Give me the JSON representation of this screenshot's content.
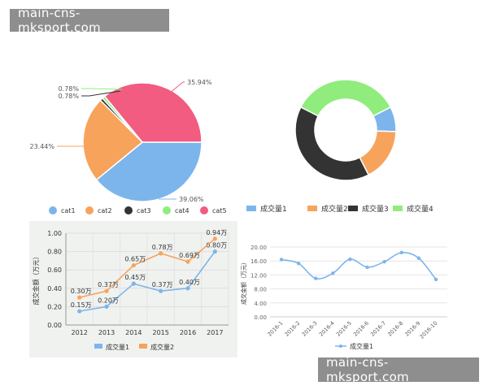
{
  "watermark": {
    "top": "main-cns-mksport.com",
    "bottom": "main-cns-mksport.com"
  },
  "chart_data": [
    {
      "type": "pie",
      "categories": [
        "cat1",
        "cat2",
        "cat3",
        "cat4",
        "cat5"
      ],
      "values": [
        39.06,
        23.44,
        0.78,
        0.78,
        35.94
      ],
      "labels": [
        "39.06%",
        "23.44%",
        "0.78%",
        "0.78%",
        "35.94%"
      ],
      "colors": [
        "#7cb5ec",
        "#f7a35c",
        "#333333",
        "#90ed7d",
        "#f15c80"
      ],
      "legend_position": "bottom"
    },
    {
      "type": "pie",
      "subtype": "donut",
      "categories": [
        "成交量1",
        "成交量2",
        "成交量3",
        "成交量4"
      ],
      "values": [
        8,
        17,
        40,
        35
      ],
      "colors": [
        "#7cb5ec",
        "#f7a35c",
        "#333333",
        "#90ed7d"
      ],
      "legend_position": "bottom"
    },
    {
      "type": "line",
      "x": [
        "2012",
        "2013",
        "2014",
        "2015",
        "2016",
        "2017"
      ],
      "series": [
        {
          "name": "成交量1",
          "values": [
            0.15,
            0.2,
            0.45,
            0.37,
            0.4,
            0.8
          ],
          "labels": [
            "0.15万",
            "0.20万",
            "0.45万",
            "0.37万",
            "0.40万",
            "0.80万"
          ],
          "color": "#7cb5ec"
        },
        {
          "name": "成交量2",
          "values": [
            0.3,
            0.37,
            0.65,
            0.78,
            0.69,
            0.94
          ],
          "labels": [
            "0.30万",
            "0.37万",
            "0.65万",
            "0.78万",
            "0.69万",
            "0.94万"
          ],
          "color": "#f7a35c"
        }
      ],
      "ylabel": "成交金额（万元）",
      "ylim": [
        0,
        1
      ],
      "yticks": [
        "0.00",
        "0.20",
        "0.40",
        "0.60",
        "0.80",
        "1.00"
      ],
      "grid": true,
      "legend_position": "bottom"
    },
    {
      "type": "line",
      "x": [
        "2016-1",
        "2016-2",
        "2016-3",
        "2016-4",
        "2016-5",
        "2016-6",
        "2016-7",
        "2016-8",
        "2016-9",
        "2016-10"
      ],
      "series": [
        {
          "name": "成交量1",
          "values": [
            16.4,
            15.3,
            11.0,
            12.5,
            16.5,
            14.2,
            15.8,
            18.4,
            16.8,
            10.7
          ],
          "color": "#7cb5ec"
        }
      ],
      "ylabel": "成交金额（万元）",
      "ylim": [
        0,
        20
      ],
      "yticks": [
        "0.00",
        "4.00",
        "8.00",
        "12.00",
        "16.00",
        "20.00"
      ],
      "grid": true,
      "smooth": true,
      "legend_position": "bottom"
    }
  ]
}
